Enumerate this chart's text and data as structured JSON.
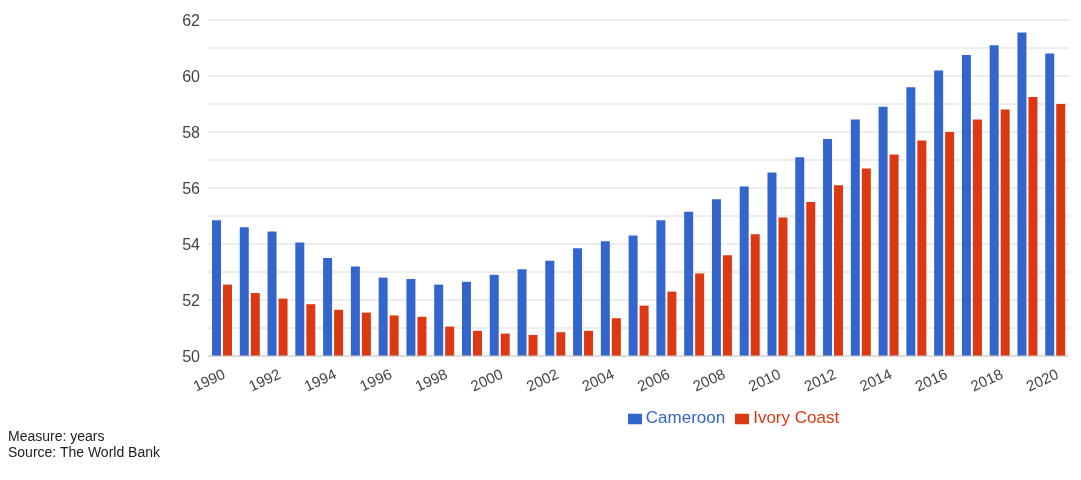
{
  "chart_data": {
    "type": "bar",
    "categories": [
      "1990",
      null,
      "1992",
      null,
      "1994",
      null,
      "1996",
      null,
      "1998",
      null,
      "2000",
      null,
      "2002",
      null,
      "2004",
      null,
      "2006",
      null,
      "2008",
      null,
      "2010",
      null,
      "2012",
      null,
      "2014",
      null,
      "2016",
      null,
      "2018",
      null,
      "2020"
    ],
    "series": [
      {
        "name": "Cameroon",
        "color": "#3366cc",
        "values": [
          54.85,
          54.6,
          54.45,
          54.05,
          53.5,
          53.2,
          52.8,
          52.75,
          52.55,
          52.65,
          52.9,
          53.1,
          53.4,
          53.85,
          54.1,
          54.3,
          54.85,
          55.15,
          55.6,
          56.05,
          56.55,
          57.1,
          57.75,
          58.45,
          58.9,
          59.6,
          60.2,
          60.75,
          61.1,
          61.55,
          60.8
        ]
      },
      {
        "name": "Ivory Coast",
        "color": "#dc3912",
        "values": [
          52.55,
          52.25,
          52.05,
          51.85,
          51.65,
          51.55,
          51.45,
          51.4,
          51.05,
          50.9,
          50.8,
          50.75,
          50.85,
          50.9,
          51.35,
          51.8,
          52.3,
          52.95,
          53.6,
          54.35,
          54.95,
          55.5,
          56.1,
          56.7,
          57.2,
          57.7,
          58.0,
          58.45,
          58.8,
          59.25,
          59.0
        ]
      }
    ],
    "ylim": [
      50,
      62
    ],
    "yticks": [
      50,
      {
        "value": 51,
        "label": null
      },
      52,
      {
        "value": 53,
        "label": null
      },
      54,
      {
        "value": 55,
        "label": null
      },
      56,
      {
        "value": 57,
        "label": null
      },
      58,
      {
        "value": 59,
        "label": null
      },
      60,
      {
        "value": 61,
        "label": null
      },
      62
    ],
    "grid": "y",
    "legend": "bottom",
    "annotations": [
      "Measure: years",
      "Source: The World Bank"
    ]
  }
}
